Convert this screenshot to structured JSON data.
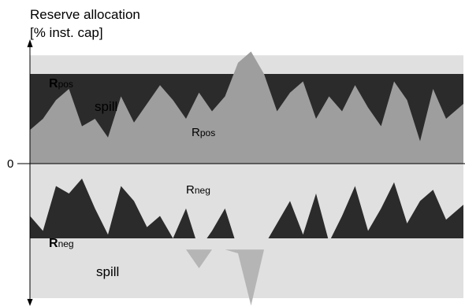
{
  "chart_data": {
    "type": "area",
    "title": "",
    "ylabel_line1": "Reserve allocation",
    "ylabel_line2": "[% inst. cap]",
    "zero_label": "0",
    "grid": false,
    "legend": "none",
    "colors": {
      "background_band": "#e0e0e0",
      "dark": "#2b2b2b",
      "mid_gray": "#9e9e9e",
      "spike_gray": "#b5b5b5",
      "axis": "#000000"
    },
    "x": [
      0,
      0.03,
      0.06,
      0.09,
      0.12,
      0.15,
      0.18,
      0.21,
      0.24,
      0.27,
      0.3,
      0.33,
      0.36,
      0.39,
      0.42,
      0.45,
      0.48,
      0.51,
      0.54,
      0.57,
      0.6,
      0.63,
      0.66,
      0.69,
      0.72,
      0.75,
      0.78,
      0.81,
      0.84,
      0.87,
      0.9,
      0.93,
      0.96,
      1.0
    ],
    "bands": {
      "pos_band": [
        1.45,
        1.0
      ],
      "pos_reserve_top": 1.2,
      "neg_reserve_bottom": -1.15,
      "neg_band": [
        -1.0,
        -1.8
      ]
    },
    "series": [
      {
        "key": "rpos_profile",
        "values": [
          0.45,
          0.6,
          0.85,
          1.0,
          0.5,
          0.6,
          0.35,
          0.9,
          0.55,
          0.8,
          1.05,
          0.85,
          0.6,
          0.95,
          0.7,
          0.9,
          1.35,
          1.5,
          1.2,
          0.7,
          0.95,
          1.1,
          0.6,
          0.9,
          0.7,
          1.05,
          0.75,
          0.5,
          1.1,
          0.85,
          0.3,
          1.0,
          0.6,
          0.8
        ]
      },
      {
        "key": "rneg_profile",
        "values": [
          -0.7,
          -0.9,
          -0.3,
          -0.4,
          -0.2,
          -0.6,
          -0.95,
          -0.3,
          -0.5,
          -0.85,
          -0.7,
          -1.0,
          -0.6,
          -1.4,
          -0.9,
          -0.6,
          -1.2,
          -1.9,
          -1.1,
          -0.8,
          -0.5,
          -0.95,
          -0.4,
          -1.05,
          -0.7,
          -0.3,
          -0.9,
          -0.6,
          -0.25,
          -0.8,
          -0.5,
          -0.35,
          -0.75,
          -0.55
        ]
      }
    ],
    "annotations": [
      {
        "key": "rpos_top",
        "main": "R",
        "sub": "pos"
      },
      {
        "key": "spill_top",
        "text": "spill"
      },
      {
        "key": "rpos_mid",
        "main": "R",
        "sub": "pos"
      },
      {
        "key": "rneg_mid",
        "main": "R",
        "sub": "neg"
      },
      {
        "key": "rneg_bottom",
        "main": "R",
        "sub": "neg"
      },
      {
        "key": "spill_bottom",
        "text": "spill"
      }
    ]
  }
}
